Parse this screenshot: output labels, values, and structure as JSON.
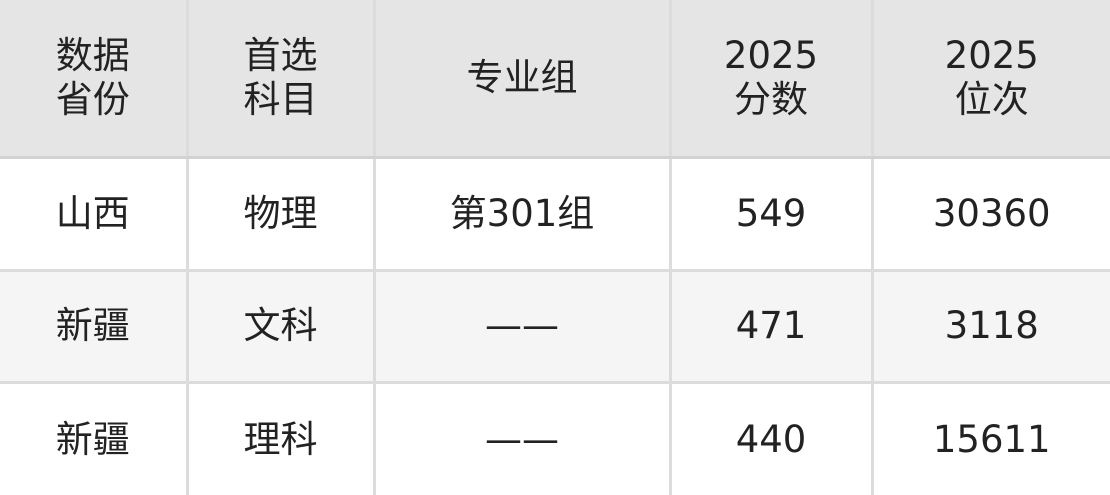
{
  "headers": [
    [
      "数据",
      "省份"
    ],
    [
      "首选",
      "科目"
    ],
    [
      "专业组"
    ],
    [
      "2025",
      "分数"
    ],
    [
      "2025",
      "位次"
    ]
  ],
  "rows": [
    [
      "山西",
      "物理",
      "第301组",
      "549",
      "30360"
    ],
    [
      "新疆",
      "文科",
      "——",
      "471",
      "3118"
    ],
    [
      "新疆",
      "理科",
      "——",
      "440",
      "15611"
    ]
  ]
}
